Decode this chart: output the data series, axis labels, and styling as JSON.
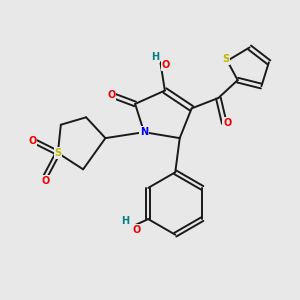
{
  "background_color": "#e8e8e8",
  "atom_colors": {
    "C": "#1a1a1a",
    "N": "#0000ee",
    "O": "#ee0000",
    "S": "#bbbb00",
    "H": "#008080"
  },
  "bond_color": "#1a1a1a",
  "bond_width": 1.4,
  "dbo": 0.06,
  "fs": 7.0
}
